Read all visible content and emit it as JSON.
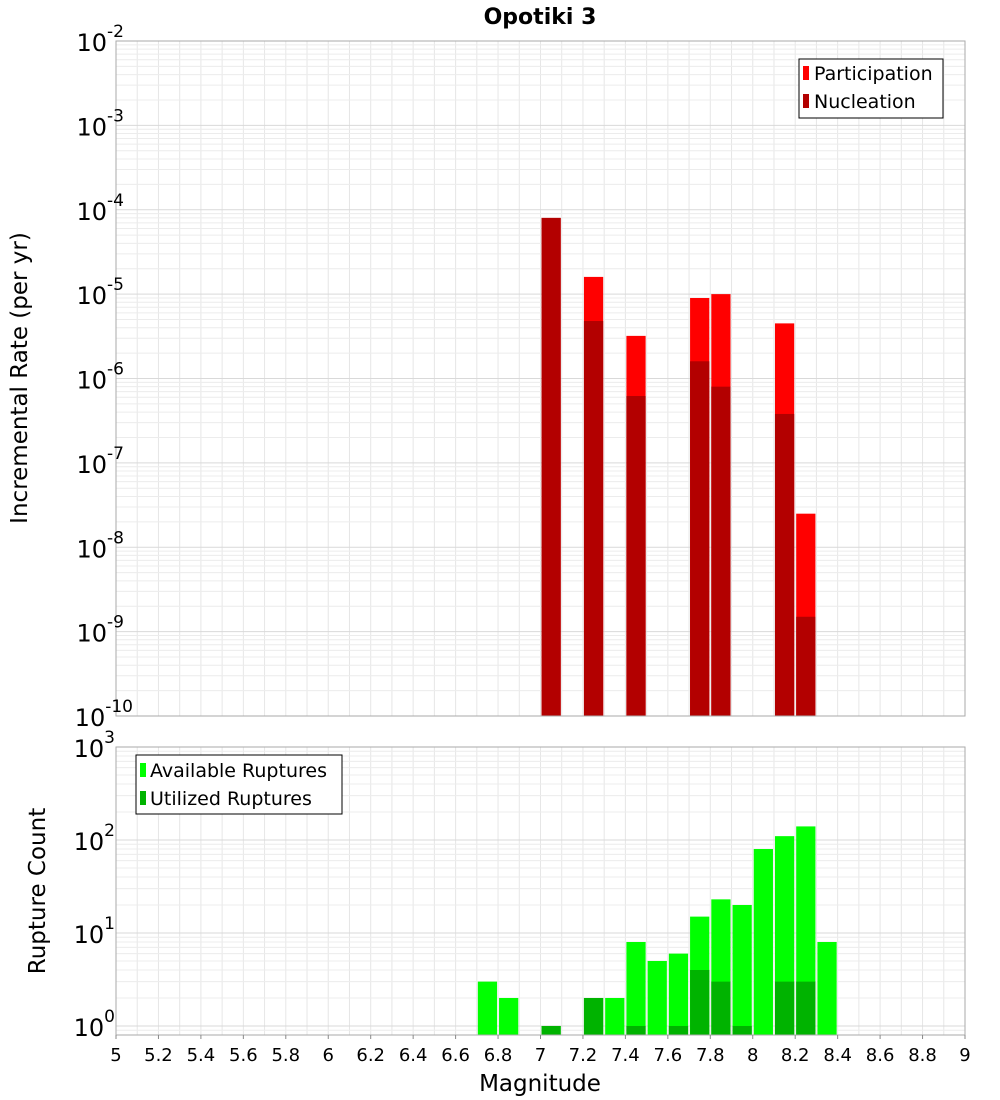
{
  "chart_data": [
    {
      "type": "bar",
      "title": "Opotiki 3",
      "xlabel": "",
      "ylabel": "Incremental Rate (per yr)",
      "yscale": "log",
      "ylim": [
        1e-10,
        0.01
      ],
      "xlim": [
        5,
        9
      ],
      "grid": true,
      "legend_position": "top-right",
      "y_ticks": [
        {
          "base": "10",
          "exp": "-10"
        },
        {
          "base": "10",
          "exp": "-9"
        },
        {
          "base": "10",
          "exp": "-8"
        },
        {
          "base": "10",
          "exp": "-7"
        },
        {
          "base": "10",
          "exp": "-6"
        },
        {
          "base": "10",
          "exp": "-5"
        },
        {
          "base": "10",
          "exp": "-4"
        },
        {
          "base": "10",
          "exp": "-3"
        },
        {
          "base": "10",
          "exp": "-2"
        }
      ],
      "series": [
        {
          "name": "Participation",
          "color": "#ff0000",
          "x": [
            7.05,
            7.25,
            7.45,
            7.75,
            7.85,
            8.15,
            8.25
          ],
          "values": [
            8e-05,
            1.6e-05,
            3.2e-06,
            9e-06,
            1e-05,
            4.5e-06,
            2.5e-08
          ]
        },
        {
          "name": "Nucleation",
          "color": "#b30000",
          "x": [
            7.05,
            7.25,
            7.45,
            7.75,
            7.85,
            8.15,
            8.25
          ],
          "values": [
            8e-05,
            4.8e-06,
            6.2e-07,
            1.6e-06,
            8e-07,
            3.8e-07,
            1.5e-09
          ]
        }
      ]
    },
    {
      "type": "bar",
      "title": "",
      "xlabel": "Magnitude",
      "ylabel": "Rupture Count",
      "yscale": "log",
      "ylim": [
        0.8,
        1000
      ],
      "xlim": [
        5,
        9
      ],
      "grid": true,
      "legend_position": "top-left",
      "y_ticks": [
        {
          "base": "10",
          "exp": "0"
        },
        {
          "base": "10",
          "exp": "1"
        },
        {
          "base": "10",
          "exp": "2"
        },
        {
          "base": "10",
          "exp": "3"
        }
      ],
      "x_ticks": [
        "5",
        "5.2",
        "5.4",
        "5.6",
        "5.8",
        "6",
        "6.2",
        "6.4",
        "6.6",
        "6.8",
        "7",
        "7.2",
        "7.4",
        "7.6",
        "7.8",
        "8",
        "8.2",
        "8.4",
        "8.6",
        "8.8",
        "9"
      ],
      "series": [
        {
          "name": "Available Ruptures",
          "color": "#00ff00",
          "x": [
            6.75,
            6.85,
            7.05,
            7.25,
            7.35,
            7.45,
            7.55,
            7.65,
            7.75,
            7.85,
            7.95,
            8.05,
            8.15,
            8.25,
            8.35
          ],
          "values": [
            3,
            2,
            1,
            2,
            2,
            8,
            5,
            6,
            15,
            23,
            20,
            80,
            110,
            140,
            8
          ]
        },
        {
          "name": "Utilized Ruptures",
          "color": "#00b300",
          "x": [
            7.05,
            7.25,
            7.45,
            7.65,
            7.75,
            7.85,
            7.95,
            8.15,
            8.25
          ],
          "values": [
            1,
            2,
            1,
            1,
            4,
            3,
            1,
            3,
            3
          ]
        }
      ]
    }
  ]
}
